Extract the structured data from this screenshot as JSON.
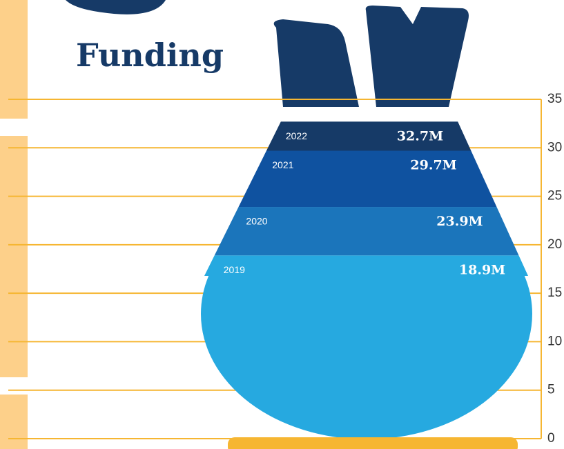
{
  "chart_data": {
    "type": "bag-fill",
    "title": "Funding",
    "categories": [
      "2019",
      "2020",
      "2021",
      "2022"
    ],
    "values": [
      18.9,
      23.9,
      29.7,
      32.7
    ],
    "value_labels": [
      "18.9M",
      "23.9M",
      "29.7M",
      "32.7M"
    ],
    "colors": [
      "#26a9e0",
      "#1b75bb",
      "#0f52a0",
      "#163a67"
    ],
    "ylim": [
      0,
      35
    ],
    "yticks": [
      0,
      5,
      10,
      15,
      20,
      25,
      30,
      35
    ],
    "grid": true
  }
}
